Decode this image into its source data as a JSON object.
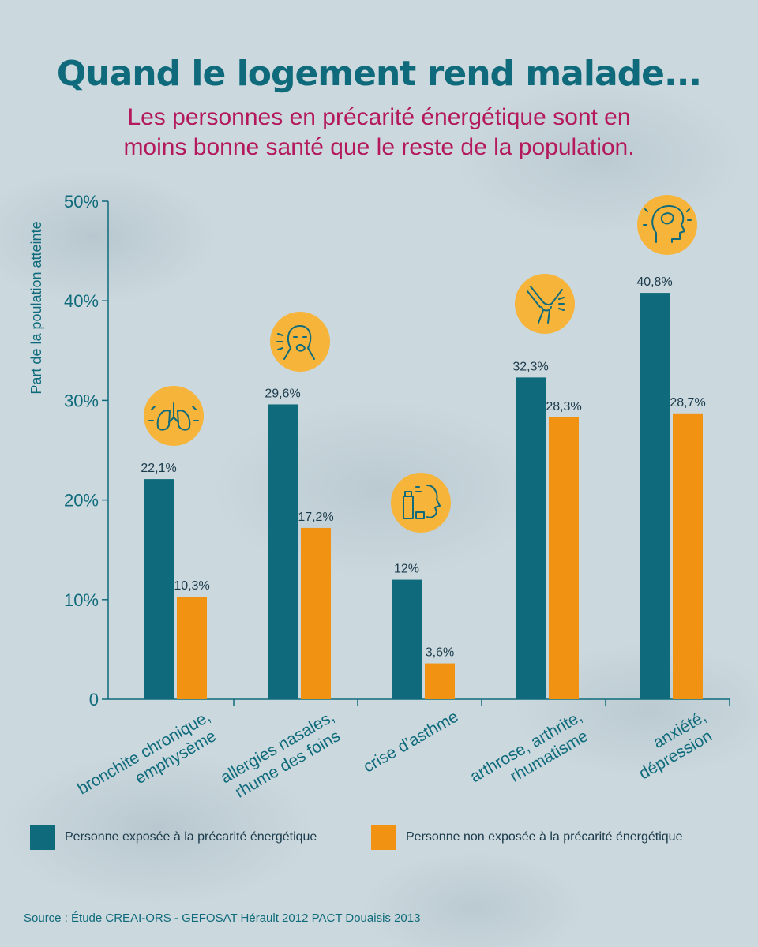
{
  "title": "Quand le logement rend malade...",
  "subtitle_line1": "Les personnes en précarité énergétique sont en",
  "subtitle_line2": "moins bonne santé que le reste de la population.",
  "colors": {
    "exposed": "#0f6b7b",
    "not_exposed": "#f29212",
    "title": "#0f6b7b",
    "subtitle": "#b3195c",
    "icon_bg": "#f6b43a"
  },
  "legend": {
    "exposed": "Personne exposée à la précarité énergétique",
    "not_exposed": "Personne non exposée à la précarité énergétique"
  },
  "source": "Source : Étude CREAI-ORS - GEFOSAT Hérault 2012 PACT Douaisis 2013",
  "chart_data": {
    "type": "bar",
    "ylabel": "Part de la poulation atteinte",
    "ylim": [
      0,
      50
    ],
    "yticks": [
      "0",
      "10%",
      "20%",
      "30%",
      "40%",
      "50%"
    ],
    "categories": [
      {
        "lines": [
          "bronchite chronique,",
          "emphysème"
        ],
        "icon": "lungs-icon"
      },
      {
        "lines": [
          "allergies nasales,",
          "rhume des foins"
        ],
        "icon": "sneezing-person-icon"
      },
      {
        "lines": [
          "crise d'asthme"
        ],
        "icon": "inhaler-icon"
      },
      {
        "lines": [
          "arthrose, arthrite,",
          "rhumatisme"
        ],
        "icon": "knee-joint-icon"
      },
      {
        "lines": [
          "anxiété,",
          "dépression"
        ],
        "icon": "head-brain-icon"
      }
    ],
    "series": [
      {
        "name": "Personne exposée à la précarité énergétique",
        "values": [
          22.1,
          29.6,
          12,
          32.3,
          40.8
        ],
        "labels": [
          "22,1%",
          "29,6%",
          "12%",
          "32,3%",
          "40,8%"
        ]
      },
      {
        "name": "Personne non exposée à la précarité énergétique",
        "values": [
          10.3,
          17.2,
          3.6,
          28.3,
          28.7
        ],
        "labels": [
          "10,3%",
          "17,2%",
          "3,6%",
          "28,3%",
          "28,7%"
        ]
      }
    ],
    "legend_position": "bottom",
    "grid": false
  }
}
